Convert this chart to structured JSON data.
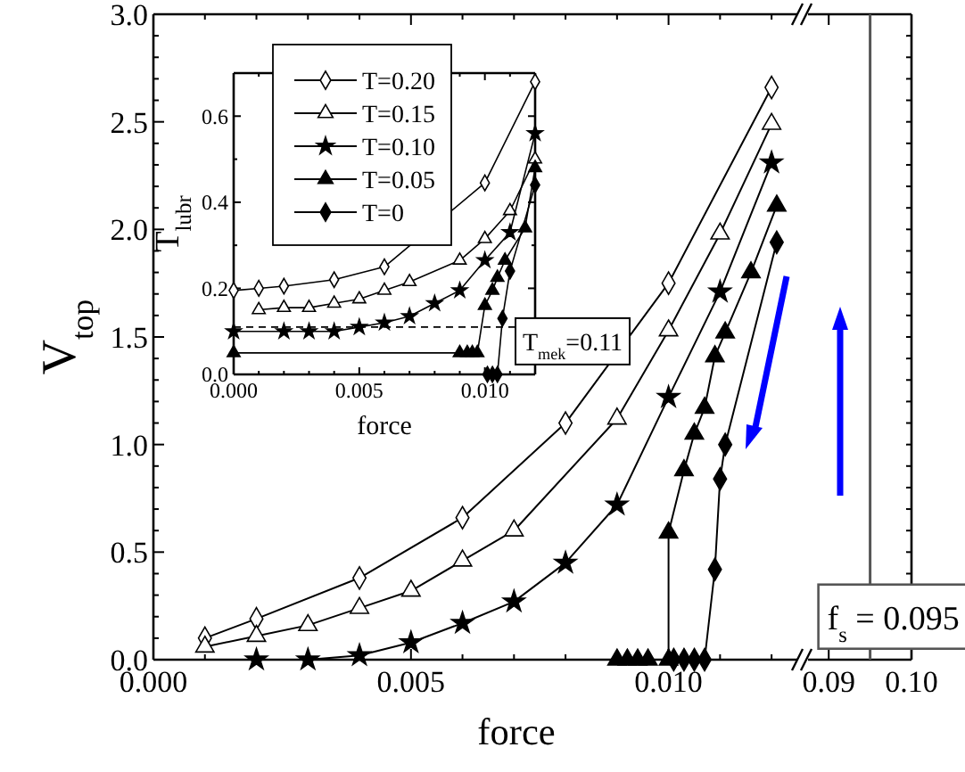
{
  "chart_data": [
    {
      "type": "line",
      "xlabel": "force",
      "ylabel": "V$_{top}$",
      "xlim": [
        0,
        0.0125
      ],
      "ylim": [
        0,
        3
      ],
      "xticks": [
        {
          "value": 0,
          "label": "0.000"
        },
        {
          "value": 0.001,
          "label": null
        },
        {
          "value": 0.002,
          "label": null
        },
        {
          "value": 0.003,
          "label": null
        },
        {
          "value": 0.004,
          "label": null
        },
        {
          "value": 0.005,
          "label": "0.005"
        },
        {
          "value": 0.006,
          "label": null
        },
        {
          "value": 0.007,
          "label": null
        },
        {
          "value": 0.008,
          "label": null
        },
        {
          "value": 0.009,
          "label": null
        },
        {
          "value": 0.01,
          "label": "0.010"
        },
        {
          "value": 0.011,
          "label": null
        },
        {
          "value": 0.012,
          "label": null
        }
      ],
      "yticks": [
        {
          "value": 0,
          "label": "0.0"
        },
        {
          "value": 0.1,
          "label": null
        },
        {
          "value": 0.2,
          "label": null
        },
        {
          "value": 0.3,
          "label": null
        },
        {
          "value": 0.4,
          "label": null
        },
        {
          "value": 0.5,
          "label": "0.5"
        },
        {
          "value": 0.6,
          "label": null
        },
        {
          "value": 0.7,
          "label": null
        },
        {
          "value": 0.8,
          "label": null
        },
        {
          "value": 0.9,
          "label": null
        },
        {
          "value": 1,
          "label": "1.0"
        },
        {
          "value": 1.1,
          "label": null
        },
        {
          "value": 1.2,
          "label": null
        },
        {
          "value": 1.3,
          "label": null
        },
        {
          "value": 1.4,
          "label": null
        },
        {
          "value": 1.5,
          "label": "1.5"
        },
        {
          "value": 1.6,
          "label": null
        },
        {
          "value": 1.7,
          "label": null
        },
        {
          "value": 1.8,
          "label": null
        },
        {
          "value": 1.9,
          "label": null
        },
        {
          "value": 2,
          "label": "2.0"
        },
        {
          "value": 2.1,
          "label": null
        },
        {
          "value": 2.2,
          "label": null
        },
        {
          "value": 2.3,
          "label": null
        },
        {
          "value": 2.4,
          "label": null
        },
        {
          "value": 2.5,
          "label": "2.5"
        },
        {
          "value": 2.6,
          "label": null
        },
        {
          "value": 2.7,
          "label": null
        },
        {
          "value": 2.8,
          "label": null
        },
        {
          "value": 2.9,
          "label": null
        },
        {
          "value": 3,
          "label": "3.0"
        }
      ],
      "series": [
        {
          "color": "#000000",
          "marker": "diamond-open",
          "x": [
            0.001,
            0.002,
            0.004,
            0.006,
            0.008,
            0.01,
            0.012
          ],
          "values": [
            0.1,
            0.19,
            0.38,
            0.66,
            1.1,
            1.75,
            2.66
          ]
        },
        {
          "color": "#000000",
          "marker": "triangle-open",
          "x": [
            0.001,
            0.002,
            0.003,
            0.004,
            0.005,
            0.006,
            0.007,
            0.009,
            0.01,
            0.011,
            0.012
          ],
          "values": [
            0.06,
            0.11,
            0.16,
            0.24,
            0.32,
            0.46,
            0.6,
            1.12,
            1.53,
            1.98,
            2.49
          ]
        },
        {
          "color": "#000000",
          "marker": "star",
          "x": [
            0.002,
            0.003,
            0.004,
            0.005,
            0.006,
            0.007,
            0.008,
            0.009,
            0.01,
            0.011,
            0.012
          ],
          "values": [
            0,
            0,
            0.02,
            0.08,
            0.17,
            0.27,
            0.45,
            0.72,
            1.22,
            1.71,
            2.31
          ]
        },
        {
          "color": "#000000",
          "marker": "triangle",
          "x": [
            0.009,
            0.0092,
            0.0094,
            0.0096,
            0.01,
            0.01,
            0.0103,
            0.0105,
            0.0107,
            0.0109,
            0.0111,
            0.0116,
            0.0121
          ],
          "values": [
            0,
            0,
            0,
            0,
            0,
            0.59,
            0.88,
            1.05,
            1.17,
            1.41,
            1.52,
            1.8,
            2.11
          ]
        },
        {
          "color": "#000000",
          "marker": "diamond",
          "x": [
            0.0101,
            0.0103,
            0.0105,
            0.0107,
            0.0109,
            0.011,
            0.0111,
            0.0121
          ],
          "values": [
            0,
            0,
            0,
            0,
            0.42,
            0.84,
            1,
            1.94
          ]
        }
      ]
    },
    {
      "type": "line",
      "xlim": [
        0.0875,
        0.1
      ],
      "ylim": [
        0,
        3
      ],
      "tick_labels": "x",
      "xticks": [
        0.09,
        {
          "value": 0.1,
          "label": "0.10"
        }
      ],
      "yticks": [
        {
          "value": 0,
          "label": null
        },
        {
          "value": 0.1,
          "label": null
        },
        {
          "value": 0.2,
          "label": null
        },
        {
          "value": 0.3,
          "label": null
        },
        {
          "value": 0.4,
          "label": null
        },
        {
          "value": 0.5,
          "label": null
        },
        {
          "value": 0.6,
          "label": null
        },
        {
          "value": 0.7,
          "label": null
        },
        {
          "value": 0.8,
          "label": null
        },
        {
          "value": 0.9,
          "label": null
        },
        {
          "value": 1,
          "label": null
        },
        {
          "value": 1.1,
          "label": null
        },
        {
          "value": 1.2,
          "label": null
        },
        {
          "value": 1.3,
          "label": null
        },
        {
          "value": 1.4,
          "label": null
        },
        {
          "value": 1.5,
          "label": null
        },
        {
          "value": 1.6,
          "label": null
        },
        {
          "value": 1.7,
          "label": null
        },
        {
          "value": 1.8,
          "label": null
        },
        {
          "value": 1.9,
          "label": null
        },
        {
          "value": 2,
          "label": null
        },
        {
          "value": 2.1,
          "label": null
        },
        {
          "value": 2.2,
          "label": null
        },
        {
          "value": 2.3,
          "label": null
        },
        {
          "value": 2.4,
          "label": null
        },
        {
          "value": 2.5,
          "label": null
        },
        {
          "value": 2.6,
          "label": null
        },
        {
          "value": 2.7,
          "label": null
        },
        {
          "value": 2.8,
          "label": null
        },
        {
          "value": 2.9,
          "label": null
        },
        {
          "value": 3,
          "label": null
        }
      ],
      "ref_lines": [
        {
          "axis": "x",
          "value": 0.095,
          "label": "f$_{s}$ = 0.095",
          "color": "#555555"
        }
      ]
    },
    {
      "type": "line",
      "xlabel": "force",
      "ylabel": "T$_{lubr}$",
      "xlim": [
        0,
        0.012
      ],
      "ylim": [
        0,
        0.7
      ],
      "legend": "top left",
      "xticks": [
        {
          "value": 0,
          "label": "0.000"
        },
        {
          "value": 0.001,
          "label": null
        },
        {
          "value": 0.002,
          "label": null
        },
        {
          "value": 0.003,
          "label": null
        },
        {
          "value": 0.004,
          "label": null
        },
        {
          "value": 0.005,
          "label": "0.005"
        },
        {
          "value": 0.006,
          "label": null
        },
        {
          "value": 0.007,
          "label": null
        },
        {
          "value": 0.008,
          "label": null
        },
        {
          "value": 0.009,
          "label": null
        },
        {
          "value": 0.01,
          "label": "0.010"
        },
        {
          "value": 0.011,
          "label": null
        },
        {
          "value": 0.012,
          "label": null
        }
      ],
      "yticks": [
        {
          "value": 0,
          "label": "0.0"
        },
        {
          "value": 0.1,
          "label": null
        },
        {
          "value": 0.2,
          "label": "0.2"
        },
        {
          "value": 0.3,
          "label": null
        },
        {
          "value": 0.4,
          "label": "0.4"
        },
        {
          "value": 0.5,
          "label": null
        },
        {
          "value": 0.6,
          "label": "0.6"
        },
        {
          "value": 0.7,
          "label": null
        }
      ],
      "ref_lines": [
        {
          "axis": "y",
          "value": 0.11,
          "label": "T$_{mek}$=0.11",
          "line_style": "dashed",
          "color": "#000000"
        }
      ],
      "series": [
        {
          "name": "T=0.20",
          "color": "#000000",
          "marker": "diamond-open",
          "x": [
            0,
            0.001,
            0.002,
            0.004,
            0.006,
            0.01,
            0.012
          ],
          "values": [
            0.195,
            0.2,
            0.205,
            0.22,
            0.25,
            0.445,
            0.68
          ]
        },
        {
          "name": "T=0.15",
          "color": "#000000",
          "marker": "triangle-open",
          "x": [
            0.001,
            0.002,
            0.003,
            0.004,
            0.005,
            0.006,
            0.007,
            0.009,
            0.01,
            0.011,
            0.012
          ],
          "values": [
            0.15,
            0.155,
            0.155,
            0.165,
            0.175,
            0.195,
            0.215,
            0.265,
            0.315,
            0.38,
            0.5
          ]
        },
        {
          "name": "T=0.10",
          "color": "#000000",
          "marker": "star",
          "x": [
            0,
            0.002,
            0.003,
            0.004,
            0.005,
            0.006,
            0.007,
            0.008,
            0.009,
            0.01,
            0.011,
            0.012
          ],
          "values": [
            0.1,
            0.1,
            0.1,
            0.1,
            0.11,
            0.12,
            0.135,
            0.165,
            0.195,
            0.265,
            0.33,
            0.56
          ]
        },
        {
          "name": "T=0.05",
          "color": "#000000",
          "marker": "triangle",
          "x": [
            0,
            0.009,
            0.0093,
            0.0095,
            0.0097,
            0.01,
            0.0103,
            0.0105,
            0.0108,
            0.0116,
            0.012
          ],
          "values": [
            0.05,
            0.05,
            0.05,
            0.05,
            0.05,
            0.16,
            0.195,
            0.225,
            0.265,
            0.34,
            0.48
          ]
        },
        {
          "name": "T=0",
          "color": "#000000",
          "marker": "diamond",
          "x": [
            0.0101,
            0.0103,
            0.0105,
            0.0107,
            0.011,
            0.012
          ],
          "values": [
            0,
            0,
            0,
            0.13,
            0.24,
            0.44
          ]
        }
      ]
    }
  ]
}
